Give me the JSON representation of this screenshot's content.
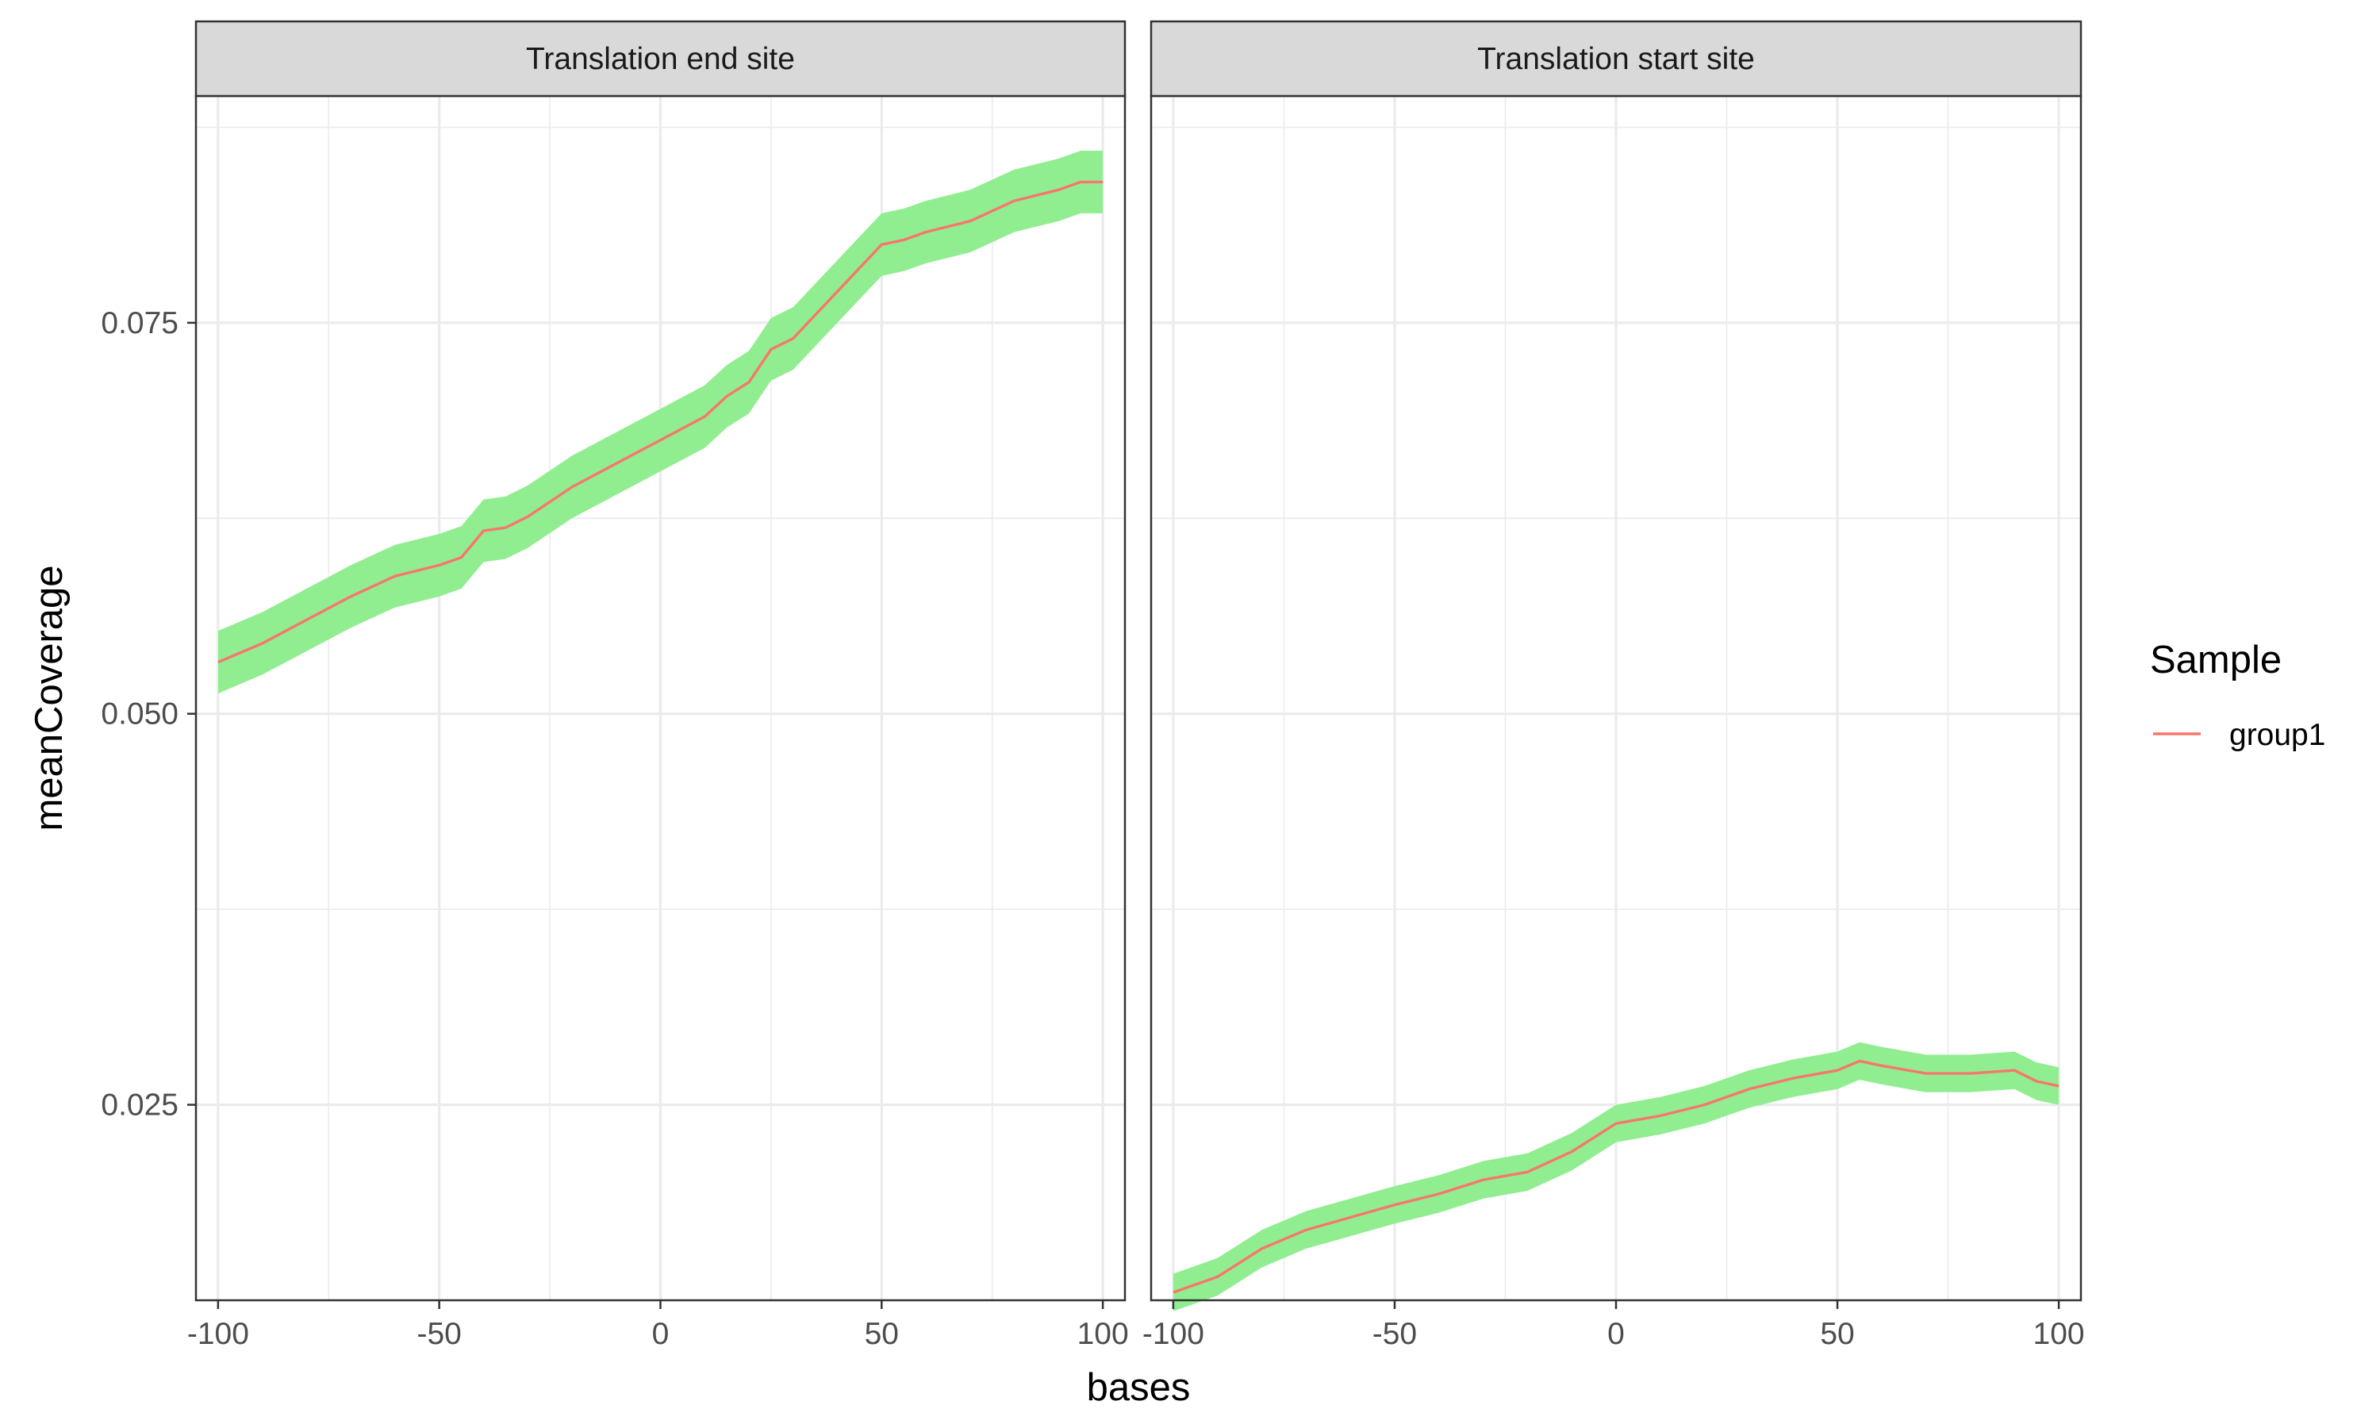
{
  "chart_data": {
    "type": "line",
    "xlabel": "bases",
    "ylabel": "meanCoverage",
    "xlim": [
      -105,
      105
    ],
    "ylim": [
      0.0125,
      0.0895
    ],
    "x_ticks": [
      -100,
      -50,
      0,
      50,
      100
    ],
    "x_tick_labels": [
      "-100",
      "-50",
      "0",
      "50",
      "100"
    ],
    "y_ticks": [
      0.025,
      0.05,
      0.075
    ],
    "y_tick_labels": [
      "0.025",
      "0.050",
      "0.075"
    ],
    "grid": true,
    "legend": {
      "title": "Sample",
      "position": "right",
      "entries": [
        {
          "label": "group1",
          "color": "#F8766D"
        }
      ]
    },
    "colors": {
      "line": "#F8766D",
      "ribbon": "#90EE90",
      "strip_bg": "#D9D9D9",
      "panel_border": "#333333",
      "grid": "#EBEBEB"
    },
    "panels": [
      {
        "title": "Translation end site",
        "series": [
          {
            "name": "group1",
            "x": [
              -100,
              -90,
              -80,
              -70,
              -60,
              -50,
              -45,
              -40,
              -35,
              -30,
              -20,
              -10,
              0,
              10,
              15,
              20,
              25,
              30,
              40,
              50,
              55,
              60,
              70,
              80,
              90,
              95,
              100
            ],
            "y": [
              0.0533,
              0.0545,
              0.056,
              0.0575,
              0.0588,
              0.0595,
              0.06,
              0.0617,
              0.0619,
              0.0626,
              0.0645,
              0.066,
              0.0675,
              0.069,
              0.0703,
              0.0712,
              0.0733,
              0.074,
              0.077,
              0.08,
              0.0803,
              0.0808,
              0.0815,
              0.0828,
              0.0835,
              0.084,
              0.084
            ],
            "ymin": [
              0.0513,
              0.0525,
              0.054,
              0.0555,
              0.0568,
              0.0575,
              0.058,
              0.0597,
              0.0599,
              0.0606,
              0.0625,
              0.064,
              0.0655,
              0.067,
              0.0683,
              0.0692,
              0.0713,
              0.072,
              0.075,
              0.078,
              0.0783,
              0.0788,
              0.0795,
              0.0808,
              0.0815,
              0.082,
              0.082
            ],
            "ymax": [
              0.0553,
              0.0565,
              0.058,
              0.0595,
              0.0608,
              0.0615,
              0.062,
              0.0637,
              0.0639,
              0.0646,
              0.0665,
              0.068,
              0.0695,
              0.071,
              0.0723,
              0.0732,
              0.0753,
              0.076,
              0.079,
              0.082,
              0.0823,
              0.0828,
              0.0835,
              0.0848,
              0.0855,
              0.086,
              0.086
            ]
          }
        ]
      },
      {
        "title": "Translation start site",
        "series": [
          {
            "name": "group1",
            "x": [
              -100,
              -90,
              -80,
              -70,
              -60,
              -50,
              -40,
              -30,
              -20,
              -10,
              0,
              10,
              20,
              30,
              40,
              50,
              55,
              60,
              70,
              80,
              90,
              95,
              100
            ],
            "y": [
              0.013,
              0.014,
              0.0158,
              0.017,
              0.0178,
              0.0186,
              0.0193,
              0.0202,
              0.0207,
              0.022,
              0.0238,
              0.0243,
              0.025,
              0.026,
              0.0267,
              0.0272,
              0.0278,
              0.0275,
              0.027,
              0.027,
              0.0272,
              0.0265,
              0.0262
            ],
            "ymin": [
              0.0118,
              0.0128,
              0.0146,
              0.0158,
              0.0166,
              0.0174,
              0.0181,
              0.019,
              0.0195,
              0.0208,
              0.0226,
              0.0231,
              0.0238,
              0.0248,
              0.0255,
              0.026,
              0.0266,
              0.0263,
              0.0258,
              0.0258,
              0.026,
              0.0253,
              0.025
            ],
            "ymax": [
              0.0142,
              0.0152,
              0.017,
              0.0182,
              0.019,
              0.0198,
              0.0205,
              0.0214,
              0.0219,
              0.0232,
              0.025,
              0.0255,
              0.0262,
              0.0272,
              0.0279,
              0.0284,
              0.029,
              0.0287,
              0.0282,
              0.0282,
              0.0284,
              0.0277,
              0.0274
            ]
          }
        ]
      }
    ]
  }
}
